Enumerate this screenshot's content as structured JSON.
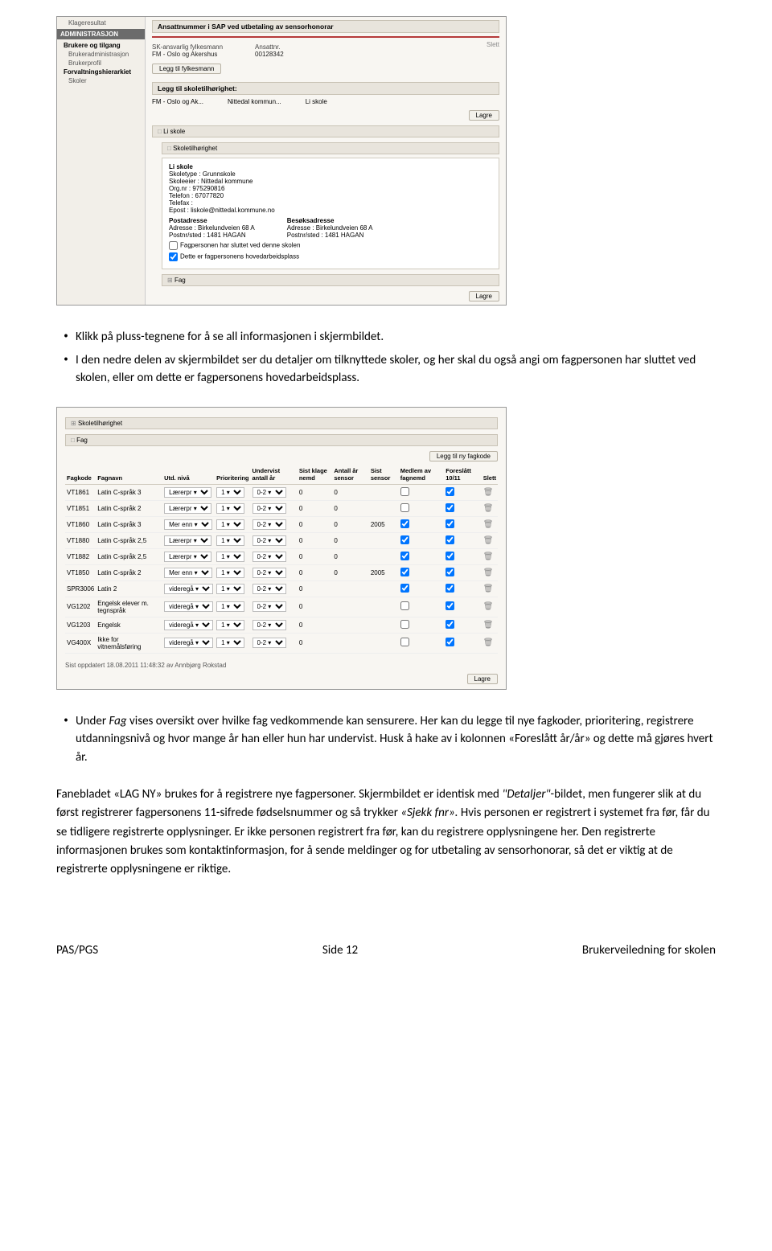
{
  "doc": {
    "footer_left": "PAS/PGS",
    "footer_mid": "Side 12",
    "footer_right": "Brukerveiledning for skolen"
  },
  "bullets": {
    "b1": "Klikk på pluss-tegnene for å se all informasjonen i skjermbildet.",
    "b2": "I den nedre delen av skjermbildet ser du detaljer om tilknyttede skoler, og her skal du også angi om fagpersonen har sluttet ved skolen, eller om dette er fagpersonens hovedarbeidsplass.",
    "b3a": "Under ",
    "b3b": "Fag",
    "b3c": " vises oversikt over hvilke fag vedkommende kan sensurere. Her kan du legge til nye fagkoder, prioritering, registrere utdanningsnivå og hvor mange år han eller hun har undervist. Husk å hake av i kolonnen «Foreslått år/år» og dette må gjøres hvert år."
  },
  "para": {
    "p1a": "Fanebladet «LAG NY» brukes for å registrere nye fagpersoner. Skjermbildet er identisk med ",
    "p1b": "\"Detaljer\"",
    "p1c": "-bildet, men fungerer slik at du først registrerer fagpersonens 11-sifrede fødselsnummer og så trykker ",
    "p1d": "«Sjekk fnr».",
    "p1e": " Hvis personen er registrert i systemet fra før, får du se tidligere registrerte opplysninger. Er ikke personen registrert fra før, kan du registrere opplysningene her. Den registrerte informasjonen brukes som kontaktinformasjon,  for å sende meldinger og for utbetaling av sensorhonorar, så det er viktig at de registrerte opplysningene er riktige."
  },
  "ss1": {
    "menu": {
      "m0": "Klageresultat",
      "admin": "ADMINISTRASJON",
      "m1": "Brukere og tilgang",
      "m1a": "Brukeradministrasjon",
      "m1b": "Brukerprofil",
      "m2": "Forvaltningshierarkiet",
      "m2a": "Skoler"
    },
    "panel1_title": "Ansattnummer i SAP ved utbetaling av sensorhonorar",
    "f1_lbl": "SK-ansvarlig fylkesmann",
    "f1_val": "FM - Oslo og Akershus",
    "f2_lbl": "Ansattnr.",
    "f2_val": "00128342",
    "btn_add_fm": "Legg til fylkesmann",
    "slett": "Slett",
    "panel2_title": "Legg til skoletilhørighet:",
    "crumb1": "FM - Oslo og Ak...",
    "crumb2": "Nittedal kommun...",
    "crumb3": "Li skole",
    "btn_lagre": "Lagre",
    "sec_skole": "Li skole",
    "sec_tilh": "Skoletilhørighet",
    "box": {
      "name": "Li skole",
      "l1": "Skoletype : ",
      "v1": "Grunnskole",
      "l2": "Skoleeier : ",
      "v2": "Nittedal kommune",
      "l3": "Org.nr : ",
      "v3": "975290816",
      "l4": "Telefon : ",
      "v4": "67077820",
      "l5": "Telefax :",
      "l6": "Epost : ",
      "v6": "liskole@nittedal.kommune.no",
      "post_h": "Postadresse",
      "bes_h": "Besøksadresse",
      "adr_l": "Adresse : ",
      "adr_v": "Birkelundveien 68 A",
      "pst_l": "Postnr/sted : ",
      "pst_v": "1481 HAGAN"
    },
    "chk1": "Fagpersonen har sluttet ved denne skolen",
    "chk2": "Dette er fagpersonens hovedarbeidsplass",
    "sec_fag": "Fag"
  },
  "ss2": {
    "sec_tilh": "Skoletilhørighet",
    "sec_fag": "Fag",
    "btn_add_fag": "Legg til ny fagkode",
    "headers": {
      "h1": "Fagkode",
      "h2": "Fagnavn",
      "h3": "Utd. nivå",
      "h4": "Prioritering",
      "h5": "Undervist antall år",
      "h6": "Sist klage nemd",
      "h7": "Antall år sensor",
      "h8": "Sist sensor",
      "h9": "Medlem av fagnemd",
      "h10": "Foreslått 10/11",
      "h11": "Slett"
    },
    "rows": [
      {
        "code": "VT1861",
        "name": "Latin C-språk 3",
        "lvl": "Lærerpr",
        "pri": "1",
        "und": "0-2",
        "kl": "0",
        "as": "0",
        "ss": "",
        "m": false,
        "f": true
      },
      {
        "code": "VT1851",
        "name": "Latin C-språk 2",
        "lvl": "Lærerpr",
        "pri": "1",
        "und": "0-2",
        "kl": "0",
        "as": "0",
        "ss": "",
        "m": false,
        "f": true
      },
      {
        "code": "VT1860",
        "name": "Latin C-språk 3",
        "lvl": "Mer enn",
        "pri": "1",
        "und": "0-2",
        "kl": "0",
        "as": "0",
        "ss": "2005",
        "m": true,
        "f": true
      },
      {
        "code": "VT1880",
        "name": "Latin C-språk 2,5",
        "lvl": "Lærerpr",
        "pri": "1",
        "und": "0-2",
        "kl": "0",
        "as": "0",
        "ss": "",
        "m": true,
        "f": true
      },
      {
        "code": "VT1882",
        "name": "Latin C-språk 2,5",
        "lvl": "Lærerpr",
        "pri": "1",
        "und": "0-2",
        "kl": "0",
        "as": "0",
        "ss": "",
        "m": true,
        "f": true
      },
      {
        "code": "VT1850",
        "name": "Latin C-språk 2",
        "lvl": "Mer enn",
        "pri": "1",
        "und": "0-2",
        "kl": "0",
        "as": "0",
        "ss": "2005",
        "m": true,
        "f": true
      },
      {
        "code": "SPR3006",
        "name": "Latin 2",
        "lvl": "videregå",
        "pri": "1",
        "und": "0-2",
        "kl": "0",
        "as": "",
        "ss": "",
        "m": true,
        "f": true
      },
      {
        "code": "VG1202",
        "name": "Engelsk elever m. tegnspråk",
        "lvl": "videregå",
        "pri": "1",
        "und": "0-2",
        "kl": "0",
        "as": "",
        "ss": "",
        "m": false,
        "f": true
      },
      {
        "code": "VG1203",
        "name": "Engelsk",
        "lvl": "videregå",
        "pri": "1",
        "und": "0-2",
        "kl": "0",
        "as": "",
        "ss": "",
        "m": false,
        "f": true
      },
      {
        "code": "VG400X",
        "name": "Ikke for vitnemålsføring",
        "lvl": "videregå",
        "pri": "1",
        "und": "0-2",
        "kl": "0",
        "as": "",
        "ss": "",
        "m": false,
        "f": true
      }
    ],
    "timestamp": "Sist oppdatert 18.08.2011 11:48:32 av Annbjørg Rokstad",
    "btn_lagre": "Lagre"
  },
  "colors": {
    "panel_bg": "#e8e4dc",
    "red": "#b53a3a",
    "page_bg": "#f8f6f2"
  }
}
